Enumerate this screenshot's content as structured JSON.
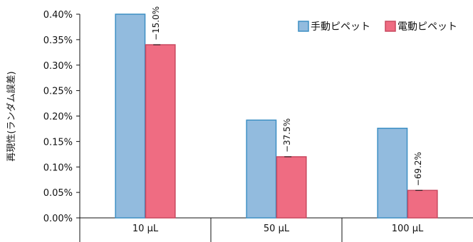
{
  "chart_data": {
    "type": "bar",
    "categories": [
      "10 μL",
      "50 μL",
      "100 μL"
    ],
    "series": [
      {
        "name": "手動ピペット",
        "values": [
          0.4,
          0.192,
          0.176
        ],
        "color": "#92bbde",
        "edge": "#3d8fc4"
      },
      {
        "name": "電動ピペット",
        "values": [
          0.34,
          0.12,
          0.054
        ],
        "color": "#ef6c82",
        "edge": "#c8485f"
      }
    ],
    "annotations": [
      "−15.0%",
      "−37.5%",
      "−69.2%"
    ],
    "ylabel": "再現性(ランダム誤差)",
    "ylim": [
      0,
      0.4
    ],
    "yticks": [
      0,
      0.05,
      0.1,
      0.15,
      0.2,
      0.25,
      0.3,
      0.35,
      0.4
    ],
    "ytick_labels": [
      "0.00%",
      "0.05%",
      "0.10%",
      "0.15%",
      "0.20%",
      "0.25%",
      "0.30%",
      "0.35%",
      "0.40%"
    ],
    "legend_position": "top-right",
    "grid": false
  }
}
